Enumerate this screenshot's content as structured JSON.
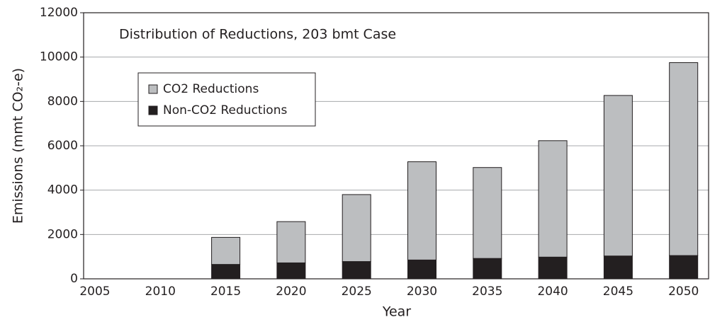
{
  "chart_data": {
    "type": "stacked-bar",
    "title": "Distribution of Reductions, 203 bmt Case",
    "x_label": "Year",
    "y_label": "Emissions (mmt CO₂-e)",
    "categories": [
      "2005",
      "2010",
      "2015",
      "2020",
      "2025",
      "2030",
      "2035",
      "2040",
      "2045",
      "2050"
    ],
    "series": [
      {
        "name": "Non-CO2 Reductions",
        "color": "#231f20",
        "values": [
          0,
          0,
          650,
          720,
          780,
          850,
          920,
          980,
          1030,
          1050
        ]
      },
      {
        "name": "CO2 Reductions",
        "color": "#bcbec0",
        "values": [
          0,
          0,
          1220,
          1860,
          3020,
          4430,
          4100,
          5250,
          7240,
          8700
        ]
      }
    ],
    "ylim": [
      0,
      12000
    ],
    "yticks": [
      0,
      2000,
      4000,
      6000,
      8000,
      10000,
      12000
    ],
    "grid": true
  }
}
